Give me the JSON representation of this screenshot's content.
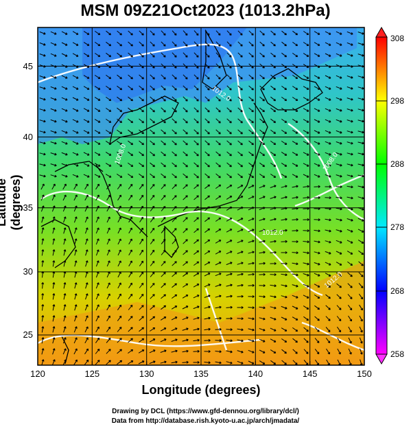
{
  "title": "MSM 09Z21Oct2023 (1013.2hPa)",
  "xlabel": "Longitude (degrees)",
  "ylabel": "Latitude  (degrees)",
  "credits": {
    "line1": "Drawing by DCL (https://www.gfd-dennou.org/library/dcl/)",
    "line2": "Data from http://database.rish.kyoto-u.ac.jp/arch/jmadata/"
  },
  "map": {
    "lon_range": [
      120,
      150
    ],
    "lat_range": [
      22.5,
      47.5
    ],
    "lon_ticks": [
      "120",
      "125",
      "130",
      "135",
      "140",
      "145",
      "150"
    ],
    "lat_ticks": [
      "25",
      "30",
      "35",
      "40",
      "45"
    ],
    "contour_labels": [
      "1012.0",
      "1008.0",
      "1012.0",
      "1008.0",
      "1012.0"
    ],
    "colorbar": {
      "range": [
        258,
        308
      ],
      "ticks": [
        "258",
        "268",
        "278",
        "288",
        "298",
        "308"
      ],
      "colors": [
        "#ff00ff",
        "#0000ff",
        "#00ffff",
        "#00ff00",
        "#ffff00",
        "#ff0000"
      ]
    }
  }
}
